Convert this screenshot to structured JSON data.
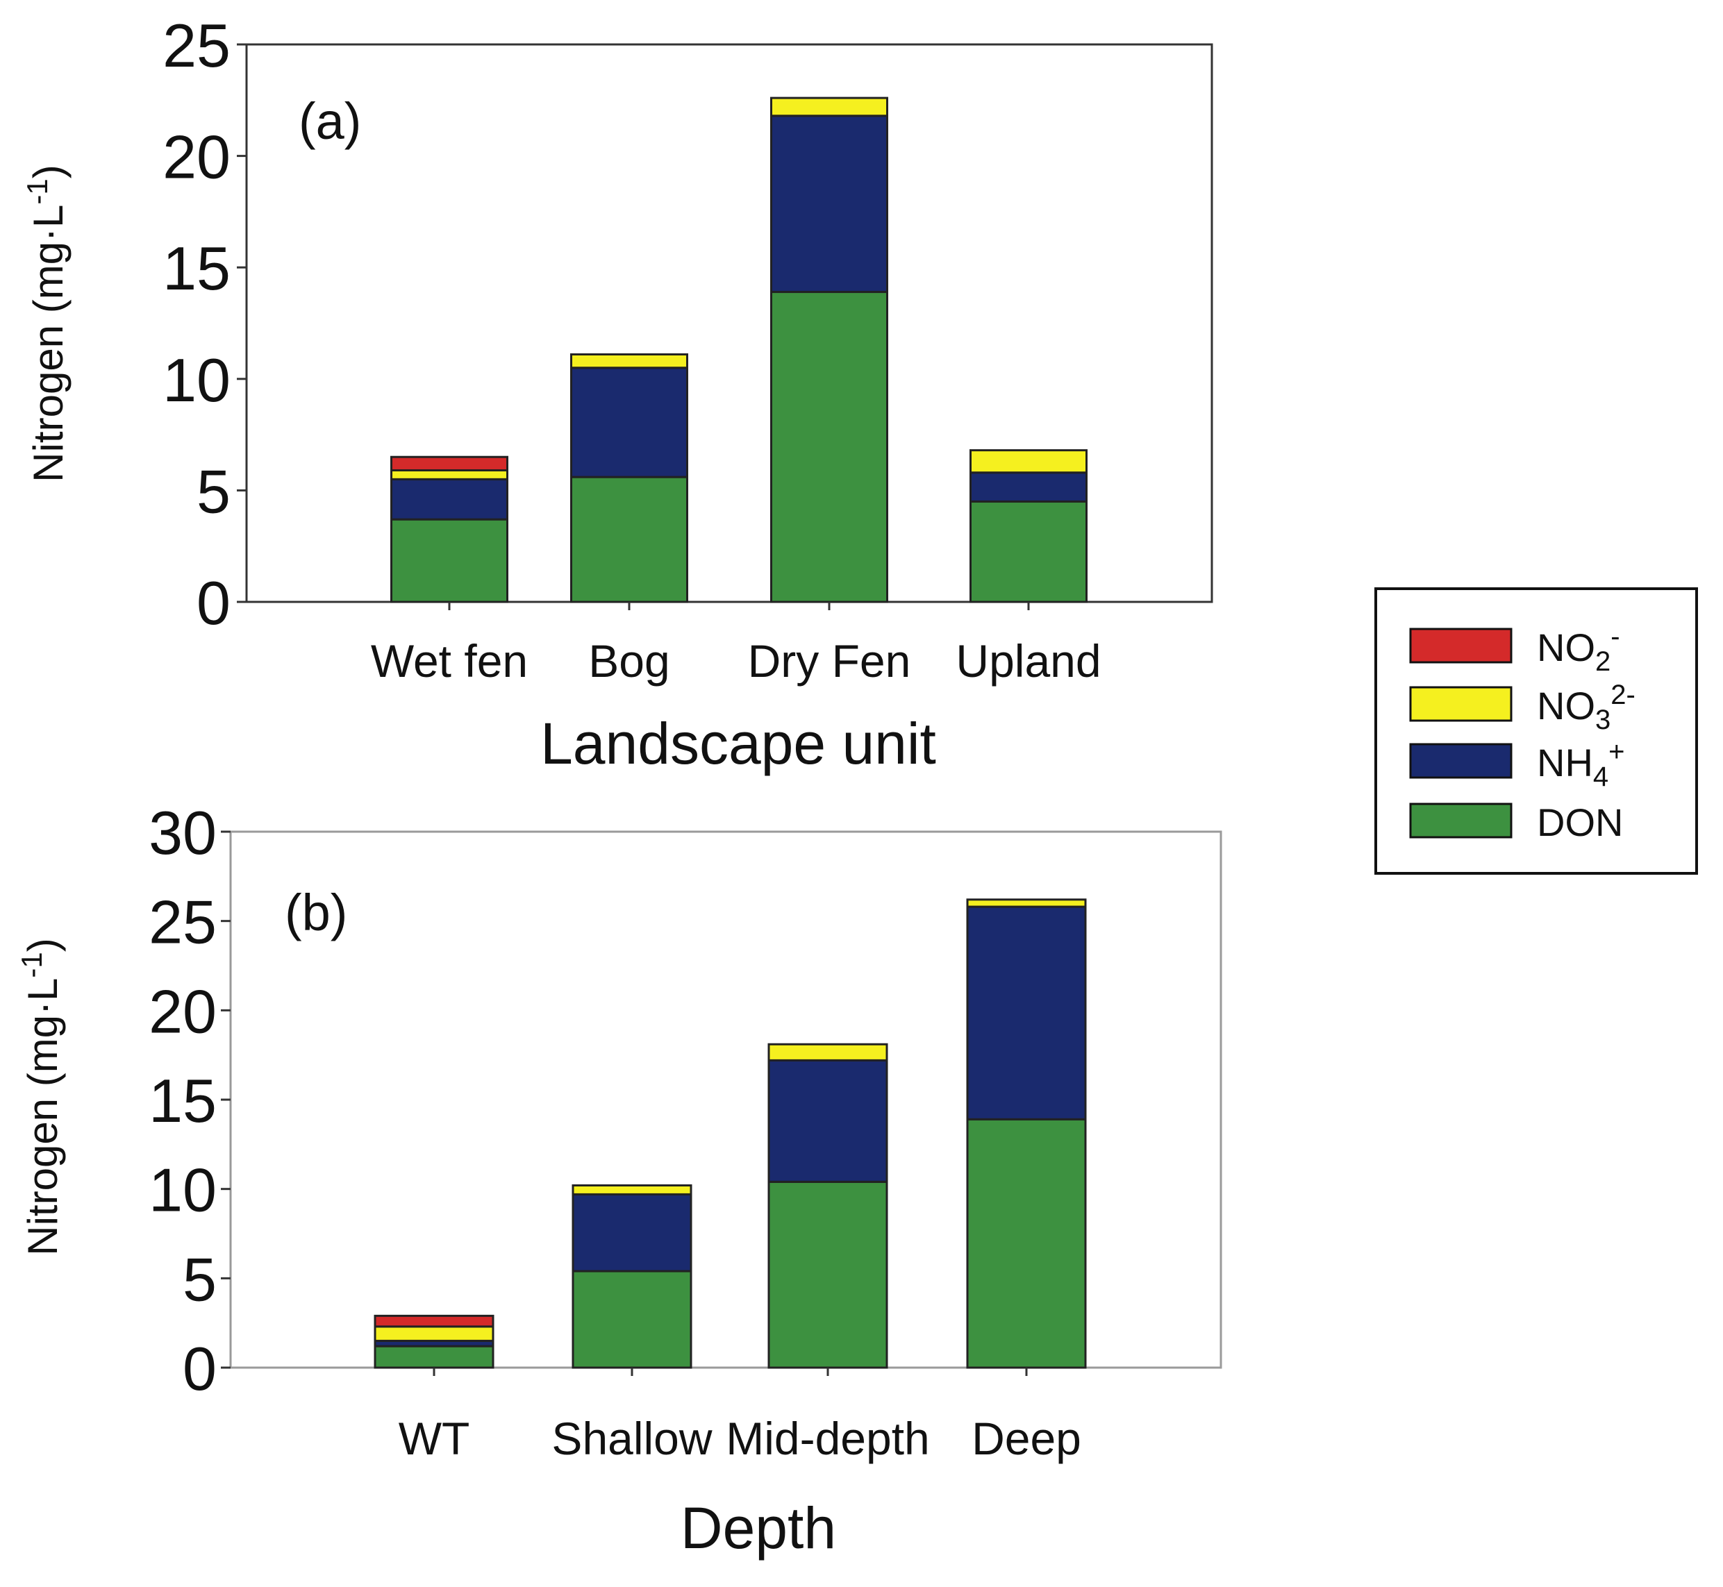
{
  "legend": {
    "entries": [
      {
        "key": "NO2",
        "base": "NO",
        "sub": "2",
        "sup": "-",
        "color": "#d42a2a"
      },
      {
        "key": "NO3",
        "base": "NO",
        "sub": "3",
        "sup": "2-",
        "color": "#f5f01f"
      },
      {
        "key": "NH4",
        "base": "NH",
        "sub": "4",
        "sup": "+",
        "color": "#1a2a6e"
      },
      {
        "key": "DON",
        "base": "DON",
        "sub": "",
        "sup": "",
        "color": "#3d9140"
      }
    ]
  },
  "chart_data": [
    {
      "type": "bar",
      "stacked": true,
      "panel_label": "(a)",
      "xlabel": "Landscape unit",
      "ylabel": "Nitrogen (mg·L",
      "ylabel_sup": "-1",
      "ylabel_close": ")",
      "ylim": [
        0,
        25
      ],
      "yticks": [
        0,
        5,
        10,
        15,
        20,
        25
      ],
      "categories": [
        "Wet fen",
        "Bog",
        "Dry Fen",
        "Upland"
      ],
      "series": [
        {
          "name": "DON",
          "values": [
            3.7,
            5.6,
            13.9,
            4.5
          ]
        },
        {
          "name": "NH4+",
          "values": [
            1.8,
            4.9,
            7.9,
            1.3
          ]
        },
        {
          "name": "NO3 2-",
          "values": [
            0.4,
            0.6,
            0.8,
            1.0
          ]
        },
        {
          "name": "NO2-",
          "values": [
            0.6,
            0.0,
            0.0,
            0.0
          ]
        }
      ]
    },
    {
      "type": "bar",
      "stacked": true,
      "panel_label": "(b)",
      "xlabel": "Depth",
      "ylabel": "Nitrogen (mg·L",
      "ylabel_sup": "-1",
      "ylabel_close": ")",
      "ylim": [
        0,
        30
      ],
      "yticks": [
        0,
        5,
        10,
        15,
        20,
        25,
        30
      ],
      "categories": [
        "WT",
        "Shallow",
        "Mid-depth",
        "Deep"
      ],
      "series": [
        {
          "name": "DON",
          "values": [
            1.2,
            5.4,
            10.4,
            13.9
          ]
        },
        {
          "name": "NH4+",
          "values": [
            0.3,
            4.3,
            6.8,
            11.9
          ]
        },
        {
          "name": "NO3 2-",
          "values": [
            0.8,
            0.5,
            0.9,
            0.4
          ]
        },
        {
          "name": "NO2-",
          "values": [
            0.6,
            0.0,
            0.0,
            0.0
          ]
        }
      ]
    }
  ]
}
